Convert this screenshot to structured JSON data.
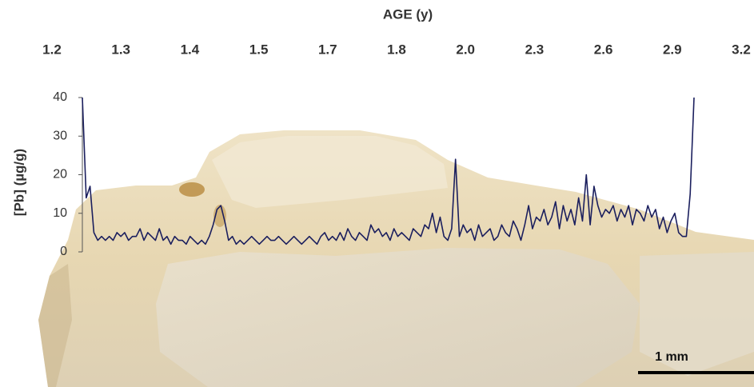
{
  "chart_data": {
    "type": "line",
    "xlabel": "AGE (y)",
    "x_tick_labels": [
      "1.2",
      "1.3",
      "1.4",
      "1.5",
      "1.7",
      "1.8",
      "2.0",
      "2.3",
      "2.6",
      "2.9",
      "3.2"
    ],
    "ylabel": "[Pb] (µg/g)",
    "ylim": [
      0,
      40
    ],
    "yticks": [
      0,
      10,
      20,
      30,
      40
    ],
    "color": "#1b1f5e",
    "values": [
      40,
      14,
      17,
      5,
      3,
      4,
      3,
      4,
      3,
      5,
      4,
      5,
      3,
      4,
      4,
      6,
      3,
      5,
      4,
      3,
      6,
      3,
      4,
      2,
      4,
      3,
      3,
      2,
      4,
      3,
      2,
      3,
      2,
      4,
      7,
      11,
      12,
      8,
      3,
      4,
      2,
      3,
      2,
      3,
      4,
      3,
      2,
      3,
      4,
      3,
      3,
      4,
      3,
      2,
      3,
      4,
      3,
      2,
      3,
      4,
      3,
      2,
      4,
      5,
      3,
      4,
      3,
      5,
      3,
      6,
      4,
      3,
      5,
      4,
      3,
      7,
      5,
      6,
      4,
      5,
      3,
      6,
      4,
      5,
      4,
      3,
      6,
      5,
      4,
      7,
      6,
      10,
      5,
      9,
      4,
      3,
      6,
      24,
      4,
      7,
      5,
      6,
      3,
      7,
      4,
      5,
      6,
      3,
      4,
      7,
      5,
      4,
      8,
      6,
      3,
      7,
      12,
      6,
      9,
      8,
      11,
      7,
      9,
      13,
      6,
      12,
      8,
      11,
      7,
      14,
      8,
      20,
      7,
      17,
      12,
      9,
      11,
      10,
      12,
      8,
      11,
      9,
      12,
      7,
      11,
      10,
      8,
      12,
      9,
      11,
      6,
      9,
      5,
      8,
      10,
      5,
      4,
      4,
      15,
      40
    ],
    "annotation": "1 mm"
  }
}
